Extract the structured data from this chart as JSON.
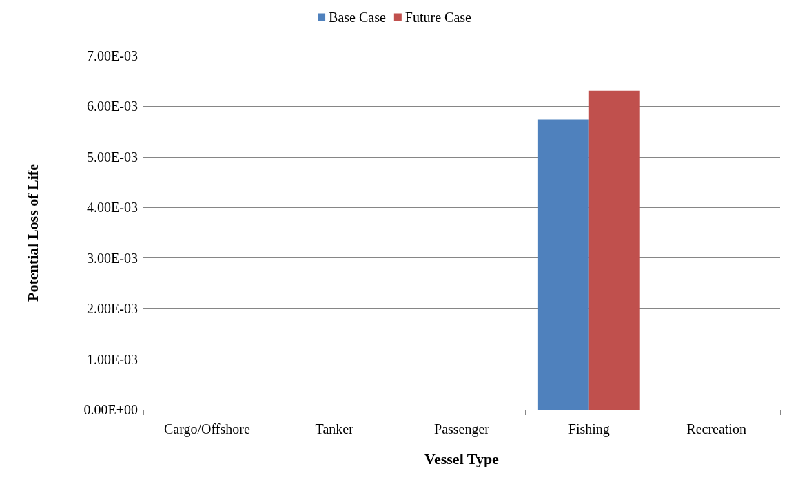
{
  "chart_data": {
    "type": "bar",
    "xlabel": "Vessel Type",
    "ylabel": "Potential Loss of Life",
    "categories": [
      "Cargo/Offshore",
      "Tanker",
      "Passenger",
      "Fishing",
      "Recreation"
    ],
    "series": [
      {
        "name": "Base Case",
        "color": "#4f81bd",
        "values": [
          0,
          0,
          0,
          0.00574,
          0
        ]
      },
      {
        "name": "Future Case",
        "color": "#c0504d",
        "values": [
          0,
          0,
          0,
          0.00631,
          0
        ]
      }
    ],
    "ylim": [
      0,
      0.007
    ],
    "yticks": [
      {
        "value": 0,
        "label": "0.00E+00"
      },
      {
        "value": 0.001,
        "label": "1.00E-03"
      },
      {
        "value": 0.002,
        "label": "2.00E-03"
      },
      {
        "value": 0.003,
        "label": "3.00E-03"
      },
      {
        "value": 0.004,
        "label": "4.00E-03"
      },
      {
        "value": 0.005,
        "label": "5.00E-03"
      },
      {
        "value": 0.006,
        "label": "6.00E-03"
      },
      {
        "value": 0.007,
        "label": "7.00E-03"
      }
    ],
    "grid": "y",
    "legend": "top"
  }
}
